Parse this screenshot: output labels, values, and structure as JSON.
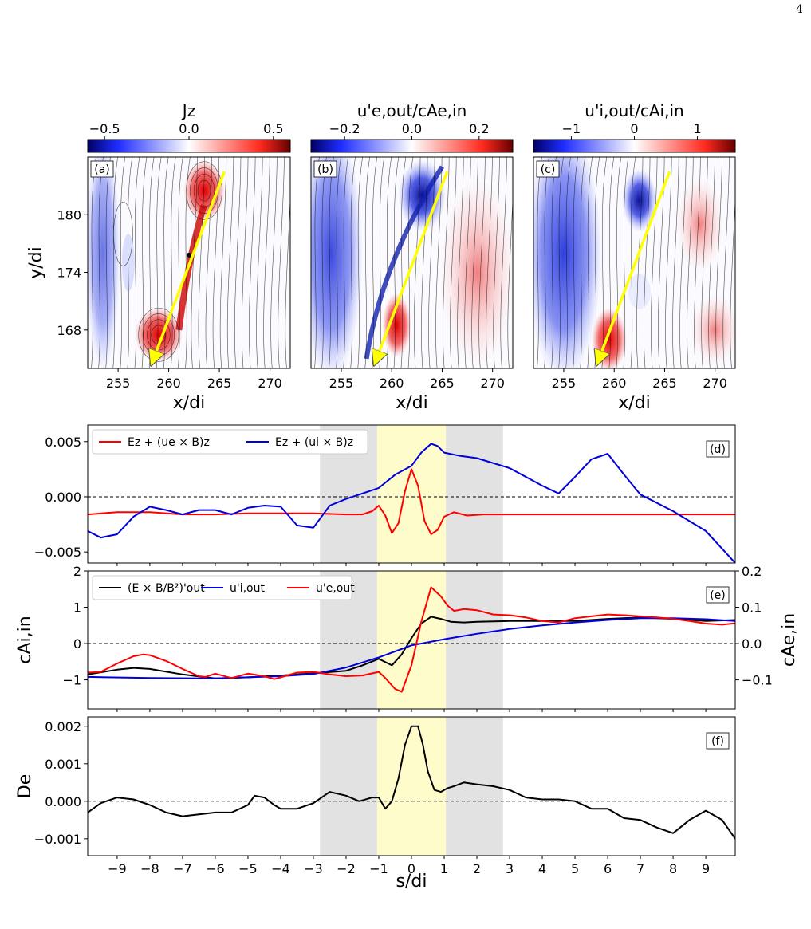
{
  "page": {
    "number": "4"
  },
  "chart_data": [
    {
      "id": "a",
      "type": "heatmap",
      "panel_label": "(a)",
      "colorbar": {
        "label": "Jz",
        "ticks": [
          -0.5,
          0.0,
          0.5
        ],
        "tick_labels": [
          "−0.5",
          "0.0",
          "0.5"
        ],
        "range": [
          -0.6,
          0.6
        ]
      },
      "xlabel": "x/di",
      "ylabel": "y/di",
      "xlim": [
        252,
        272
      ],
      "ylim": [
        164,
        186
      ],
      "xticks": [
        255,
        260,
        265,
        270
      ],
      "xtick_labels": [
        "255",
        "260",
        "265",
        "270"
      ],
      "yticks": [
        168,
        174,
        180
      ],
      "ytick_labels": [
        "168",
        "174",
        "180"
      ],
      "arrow": {
        "from": [
          265.5,
          184.5
        ],
        "to": [
          258.5,
          165
        ],
        "color": "#ffff00"
      },
      "xpoint": [
        262,
        175.8
      ]
    },
    {
      "id": "b",
      "type": "heatmap",
      "panel_label": "(b)",
      "colorbar": {
        "label": "u'e,out/cAe,in",
        "ticks": [
          -0.2,
          0.0,
          0.2
        ],
        "tick_labels": [
          "−0.2",
          "0.0",
          "0.2"
        ],
        "range": [
          -0.3,
          0.3
        ]
      },
      "xlabel": "x/di",
      "xlim": [
        252,
        272
      ],
      "ylim": [
        164,
        186
      ],
      "xticks": [
        255,
        260,
        265,
        270
      ],
      "xtick_labels": [
        "255",
        "260",
        "265",
        "270"
      ],
      "arrow": {
        "from": [
          265.5,
          184.5
        ],
        "to": [
          258.5,
          165
        ],
        "color": "#ffff00"
      }
    },
    {
      "id": "c",
      "type": "heatmap",
      "panel_label": "(c)",
      "colorbar": {
        "label": "u'i,out/cAi,in",
        "ticks": [
          -1,
          0,
          1
        ],
        "tick_labels": [
          "−1",
          "0",
          "1"
        ],
        "range": [
          -1.6,
          1.6
        ]
      },
      "xlabel": "x/di",
      "xlim": [
        252,
        272
      ],
      "ylim": [
        164,
        186
      ],
      "xticks": [
        255,
        260,
        265,
        270
      ],
      "xtick_labels": [
        "255",
        "260",
        "265",
        "270"
      ],
      "arrow": {
        "from": [
          265.5,
          184.5
        ],
        "to": [
          258.5,
          165
        ],
        "color": "#ffff00"
      }
    },
    {
      "id": "d",
      "type": "line",
      "panel_label": "(d)",
      "xlim": [
        -9.9,
        9.9
      ],
      "ylim": [
        -0.006,
        0.0065
      ],
      "yticks": [
        -0.005,
        0.0,
        0.005
      ],
      "ytick_labels": [
        "−0.005",
        "0.000",
        "0.005"
      ],
      "legend": "top-left",
      "series": [
        {
          "name": "Ez + (ue × B)z",
          "color": "#ff0000",
          "x": [
            -9.9,
            -9,
            -8,
            -7,
            -6,
            -5,
            -4,
            -3,
            -2,
            -1.5,
            -1.2,
            -1.0,
            -0.8,
            -0.6,
            -0.4,
            -0.2,
            0,
            0.2,
            0.4,
            0.6,
            0.8,
            1.0,
            1.3,
            1.7,
            2.2,
            3,
            4,
            5,
            6,
            7,
            8,
            9,
            9.9
          ],
          "y": [
            -0.0016,
            -0.0014,
            -0.0014,
            -0.0016,
            -0.0016,
            -0.0015,
            -0.0015,
            -0.0015,
            -0.0016,
            -0.0016,
            -0.0013,
            -0.0008,
            -0.0017,
            -0.0033,
            -0.0024,
            0.0005,
            0.0025,
            0.001,
            -0.0022,
            -0.0034,
            -0.003,
            -0.0018,
            -0.0014,
            -0.0017,
            -0.0016,
            -0.0016,
            -0.0016,
            -0.0016,
            -0.0016,
            -0.0016,
            -0.0016,
            -0.0016,
            -0.0016
          ]
        },
        {
          "name": "Ez + (ui × B)z",
          "color": "#0000dd",
          "x": [
            -9.9,
            -9.5,
            -9,
            -8.5,
            -8,
            -7.5,
            -7,
            -6.5,
            -6,
            -5.5,
            -5,
            -4.5,
            -4,
            -3.5,
            -3,
            -2.5,
            -2,
            -1.5,
            -1,
            -0.5,
            0,
            0.3,
            0.6,
            0.8,
            1,
            1.5,
            2,
            3,
            4,
            4.5,
            5,
            5.5,
            6,
            6.5,
            7,
            8,
            9,
            9.9
          ],
          "y": [
            -0.0031,
            -0.0037,
            -0.0034,
            -0.0018,
            -0.0009,
            -0.0012,
            -0.0016,
            -0.0012,
            -0.0012,
            -0.0016,
            -0.001,
            -0.0008,
            -0.0009,
            -0.0026,
            -0.0028,
            -0.0008,
            -0.0002,
            0.0003,
            0.0008,
            0.002,
            0.0028,
            0.004,
            0.0048,
            0.0046,
            0.004,
            0.0037,
            0.0035,
            0.0026,
            0.001,
            0.0003,
            0.0018,
            0.0034,
            0.0039,
            0.002,
            0.0002,
            -0.0013,
            -0.0031,
            -0.006
          ]
        }
      ]
    },
    {
      "id": "e",
      "type": "line",
      "panel_label": "(e)",
      "xlim": [
        -9.9,
        9.9
      ],
      "ylim": [
        -1.8,
        2.0
      ],
      "ylabel": "cAi,in",
      "ylabel_right": "cAe,in",
      "yticks": [
        -1,
        0,
        1,
        2
      ],
      "ytick_labels": [
        "−1",
        "0",
        "1",
        "2"
      ],
      "yticks_right": [
        -0.1,
        0.0,
        0.1,
        0.2
      ],
      "ytick_labels_right": [
        "−0.1",
        "0.0",
        "0.1",
        "0.2"
      ],
      "legend": "top-left",
      "series": [
        {
          "name": "(E × B/B²)'out",
          "color": "#000000",
          "x": [
            -9.9,
            -9,
            -8.5,
            -8,
            -7,
            -6,
            -5,
            -4,
            -3,
            -2,
            -1.5,
            -1,
            -0.6,
            -0.3,
            0,
            0.3,
            0.6,
            0.9,
            1.2,
            1.6,
            2,
            3,
            4,
            5,
            6,
            7,
            8,
            9,
            9.9
          ],
          "y": [
            -0.85,
            -0.72,
            -0.67,
            -0.7,
            -0.85,
            -0.96,
            -0.93,
            -0.88,
            -0.82,
            -0.75,
            -0.6,
            -0.42,
            -0.6,
            -0.3,
            0.15,
            0.55,
            0.74,
            0.68,
            0.6,
            0.58,
            0.6,
            0.62,
            0.62,
            0.62,
            0.68,
            0.72,
            0.68,
            0.62,
            0.65
          ]
        },
        {
          "name": "u'i,out",
          "color": "#0000dd",
          "x": [
            -9.9,
            -8,
            -6,
            -4,
            -3,
            -2,
            -1,
            0,
            1,
            2,
            3,
            4,
            5,
            6,
            7,
            8,
            9,
            9.9
          ],
          "y": [
            -0.92,
            -0.95,
            -0.96,
            -0.9,
            -0.84,
            -0.66,
            -0.38,
            -0.05,
            0.12,
            0.27,
            0.4,
            0.5,
            0.58,
            0.65,
            0.7,
            0.7,
            0.67,
            0.62
          ]
        },
        {
          "name": "u'e,out",
          "color": "#ff0000",
          "x": [
            -9.9,
            -9.5,
            -9,
            -8.5,
            -8.2,
            -8,
            -7.5,
            -7,
            -6.5,
            -6.3,
            -6,
            -5.5,
            -5,
            -4.5,
            -4.2,
            -4,
            -3.5,
            -3,
            -2.5,
            -2,
            -1.5,
            -1,
            -0.8,
            -0.5,
            -0.3,
            0,
            0.3,
            0.6,
            0.9,
            1.1,
            1.3,
            1.6,
            2,
            2.5,
            3,
            3.5,
            4,
            4.5,
            5,
            5.5,
            6,
            6.5,
            7,
            7.5,
            8,
            8.5,
            9,
            9.5,
            9.9
          ],
          "y": [
            -0.8,
            -0.78,
            -0.55,
            -0.35,
            -0.3,
            -0.32,
            -0.48,
            -0.7,
            -0.9,
            -0.92,
            -0.83,
            -0.95,
            -0.83,
            -0.9,
            -0.98,
            -0.93,
            -0.8,
            -0.78,
            -0.85,
            -0.9,
            -0.88,
            -0.78,
            -0.95,
            -1.25,
            -1.33,
            -0.6,
            0.6,
            1.55,
            1.3,
            1.05,
            0.9,
            0.95,
            0.92,
            0.8,
            0.78,
            0.72,
            0.62,
            0.58,
            0.7,
            0.75,
            0.8,
            0.78,
            0.75,
            0.72,
            0.68,
            0.62,
            0.55,
            0.52,
            0.56
          ]
        }
      ]
    },
    {
      "id": "f",
      "type": "line",
      "panel_label": "(f)",
      "xlim": [
        -9.9,
        9.9
      ],
      "ylim": [
        -0.00145,
        0.00225
      ],
      "ylabel": "De",
      "xlabel": "s/di",
      "yticks": [
        -0.001,
        0.0,
        0.001,
        0.002
      ],
      "ytick_labels": [
        "−0.001",
        "0.000",
        "0.001",
        "0.002"
      ],
      "xticks": [
        -9,
        -8,
        -7,
        -6,
        -5,
        -4,
        -3,
        -2,
        -1,
        0,
        1,
        2,
        3,
        4,
        5,
        6,
        7,
        8,
        9
      ],
      "xtick_labels": [
        "−9",
        "−8",
        "−7",
        "−6",
        "−5",
        "−4",
        "−3",
        "−2",
        "−1",
        "0",
        "1",
        "2",
        "3",
        "4",
        "5",
        "6",
        "7",
        "8",
        "9"
      ],
      "series": [
        {
          "name": "De",
          "color": "#000000",
          "x": [
            -9.9,
            -9.5,
            -9,
            -8.5,
            -8,
            -7.5,
            -7,
            -6.5,
            -6,
            -5.5,
            -5,
            -4.8,
            -4.5,
            -4.2,
            -4,
            -3.5,
            -3,
            -2.5,
            -2,
            -1.6,
            -1.2,
            -1,
            -0.8,
            -0.6,
            -0.4,
            -0.2,
            0,
            0.2,
            0.35,
            0.5,
            0.7,
            0.9,
            1.1,
            1.3,
            1.6,
            2,
            2.5,
            3,
            3.5,
            4,
            4.5,
            5,
            5.5,
            6,
            6.5,
            7,
            7.5,
            8,
            8.5,
            9,
            9.5,
            9.9
          ],
          "y": [
            -0.0003,
            -5e-05,
            0.0001,
            5e-05,
            -0.0001,
            -0.0003,
            -0.0004,
            -0.00035,
            -0.0003,
            -0.0003,
            -0.0001,
            0.00015,
            0.0001,
            -0.0001,
            -0.0002,
            -0.0002,
            -5e-05,
            0.00025,
            0.00015,
            0.0,
            0.0001,
            0.0001,
            -0.0002,
            0.0,
            0.0006,
            0.0015,
            0.002,
            0.002,
            0.0015,
            0.0008,
            0.0003,
            0.00025,
            0.00035,
            0.0004,
            0.0005,
            0.00045,
            0.0004,
            0.0003,
            0.0001,
            5e-05,
            5e-05,
            0.0,
            -0.0002,
            -0.0002,
            -0.00045,
            -0.0005,
            -0.0007,
            -0.00085,
            -0.0005,
            -0.00025,
            -0.0005,
            -0.001
          ]
        }
      ]
    }
  ],
  "shading": {
    "gray_band": [
      -2.8,
      2.8
    ],
    "gray_color": "#e2e2e2",
    "yellow_band": [
      -1.05,
      1.05
    ],
    "yellow_color": "#fffccc"
  },
  "cmap": {
    "neg_dark": "#000064",
    "neg": "#1e2dff",
    "zero": "#ffffff",
    "pos": "#ff2a1e",
    "pos_dark": "#640000"
  }
}
